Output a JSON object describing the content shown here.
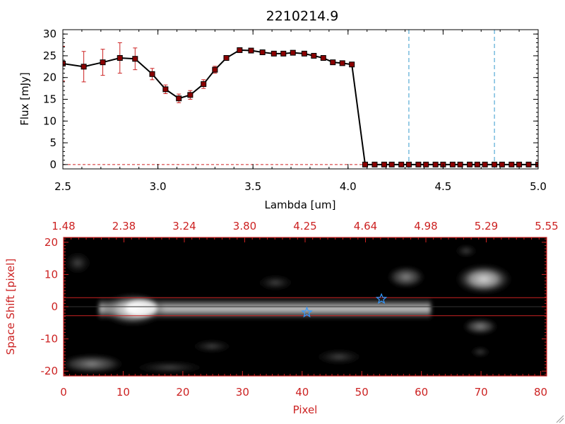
{
  "chart_data": [
    {
      "type": "line",
      "title": "2210214.9",
      "xlabel": "Lambda [um]",
      "ylabel": "Flux [mJy]",
      "xlim": [
        2.5,
        5.0
      ],
      "ylim": [
        -1,
        31
      ],
      "x_ticks": [
        "2.5",
        "3.0",
        "3.5",
        "4.0",
        "4.5",
        "5.0"
      ],
      "y_ticks": [
        "0",
        "5",
        "10",
        "15",
        "20",
        "25",
        "30"
      ],
      "series": [
        {
          "name": "flux",
          "color": "#000000",
          "marker_color": "#8b0000",
          "errorbar_color": "#cc2222",
          "x": [
            2.5,
            2.61,
            2.71,
            2.8,
            2.88,
            2.97,
            3.04,
            3.11,
            3.17,
            3.24,
            3.3,
            3.36,
            3.43,
            3.49,
            3.55,
            3.61,
            3.66,
            3.71,
            3.77,
            3.82,
            3.87,
            3.92,
            3.97,
            4.02,
            4.09,
            4.14,
            4.19,
            4.23,
            4.28,
            4.32,
            4.37,
            4.41,
            4.46,
            4.5,
            4.55,
            4.59,
            4.64,
            4.68,
            4.72,
            4.77,
            4.81,
            4.86,
            4.9,
            4.95,
            5.0
          ],
          "y": [
            23.2,
            22.5,
            23.5,
            24.5,
            24.3,
            20.8,
            17.3,
            15.2,
            16.0,
            18.5,
            21.8,
            24.5,
            26.3,
            26.2,
            25.8,
            25.5,
            25.5,
            25.7,
            25.5,
            25.0,
            24.5,
            23.5,
            23.3,
            23.0,
            0,
            0,
            0,
            0,
            0,
            0,
            0,
            0,
            0,
            0,
            0,
            0,
            0,
            0,
            0,
            0,
            0,
            0,
            0,
            0,
            0
          ],
          "yerr": [
            4.0,
            3.5,
            3.0,
            3.5,
            2.5,
            1.3,
            1.0,
            1.0,
            1.0,
            1.0,
            0.8,
            0.5,
            0.4,
            0.4,
            0.4,
            0.4,
            0.4,
            0.4,
            0.4,
            0.4,
            0.4,
            0.4,
            0.4,
            0.4,
            0,
            0,
            0,
            0,
            0,
            0,
            0,
            0,
            0,
            0,
            0,
            0,
            0,
            0,
            0,
            0,
            0,
            0,
            0,
            0,
            0
          ]
        }
      ],
      "vlines": [
        {
          "x": 4.32,
          "color": "#3399cc",
          "style": "dashed"
        },
        {
          "x": 4.77,
          "color": "#3399cc",
          "style": "dashed"
        }
      ],
      "hline": {
        "y": 0,
        "color": "#cc2222",
        "style": "dashed"
      }
    },
    {
      "type": "heatmap",
      "colormap": "grayscale",
      "xlabel": "Pixel",
      "ylabel": "Space Shift [pixel]",
      "xlim": [
        0,
        81
      ],
      "ylim": [
        -21.5,
        21.5
      ],
      "x_ticks": [
        "0",
        "10",
        "20",
        "30",
        "40",
        "50",
        "60",
        "70",
        "80"
      ],
      "y_ticks": [
        "-20",
        "-10",
        "0",
        "10",
        "20"
      ],
      "top_axis_ticks": [
        "1.48",
        "2.38",
        "3.24",
        "3.80",
        "4.25",
        "4.64",
        "4.98",
        "5.29",
        "5.55"
      ],
      "aperture_lines_y": [
        2.8,
        -2.8
      ],
      "aperture_color": "#cc2222",
      "markers": [
        {
          "symbol": "star",
          "x": 40.8,
          "y": -1.8,
          "color": "#3399ff"
        },
        {
          "symbol": "star",
          "x": 53.3,
          "y": 2.4,
          "color": "#3399ff"
        }
      ],
      "label_color": "#cc2222",
      "background_color": "#000000"
    }
  ]
}
